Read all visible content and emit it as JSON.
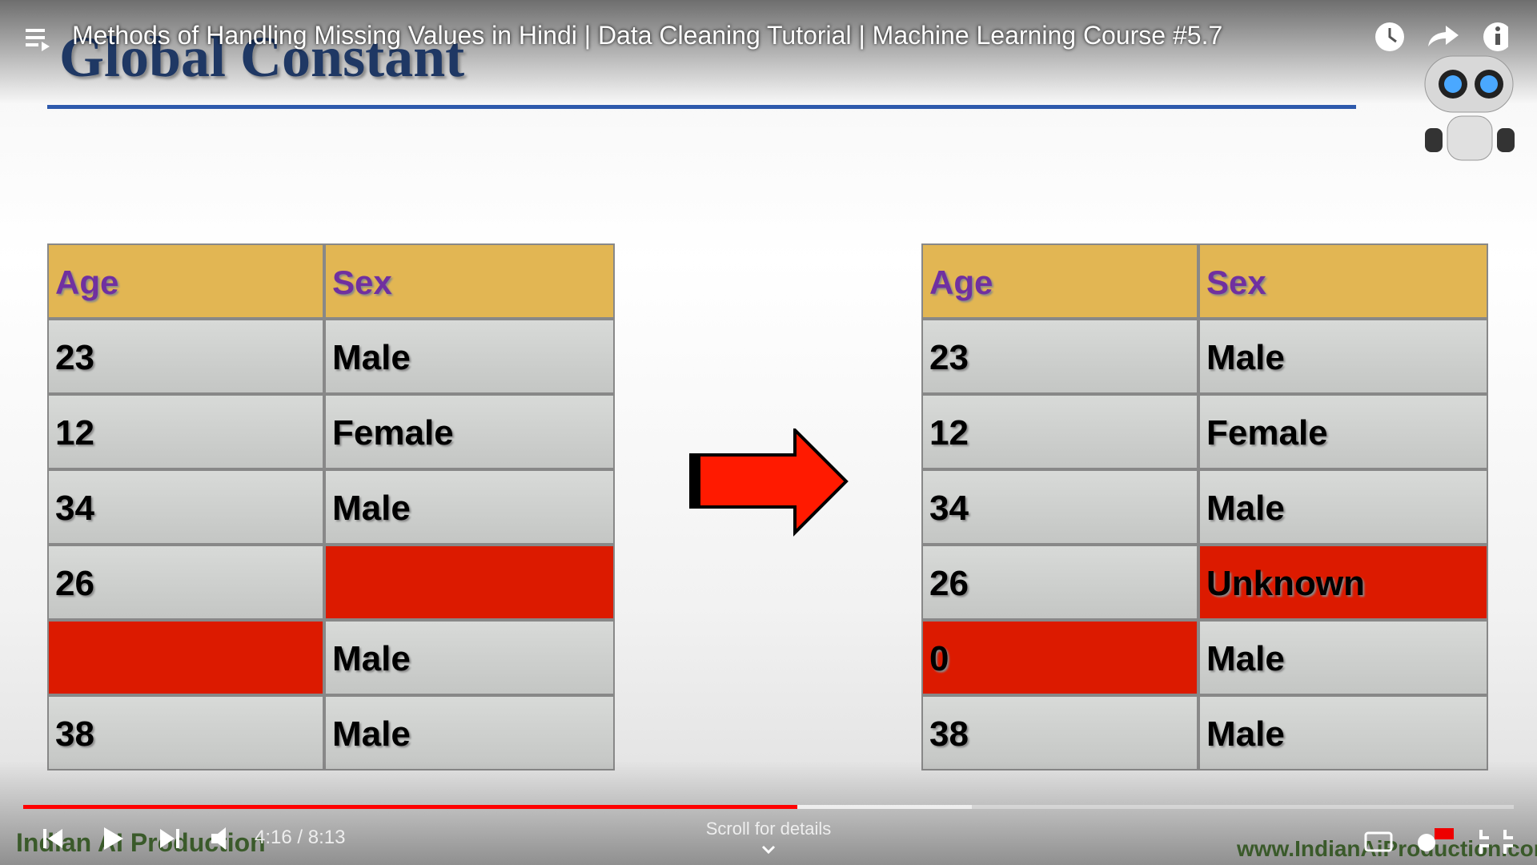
{
  "player": {
    "video_title": "Methods of Handling Missing Values in Hindi | Data Cleaning Tutorial | Machine Learning Course #5.7",
    "time": "4:16 / 8:13",
    "scroll_hint": "Scroll for details"
  },
  "slide": {
    "title": "Global Constant",
    "tables": [
      {
        "header": [
          "Age",
          "Sex"
        ],
        "rows": [
          [
            "23",
            "Male"
          ],
          [
            "12",
            "Female"
          ],
          [
            "34",
            "Male"
          ],
          [
            "26",
            null
          ],
          [
            null,
            "Male"
          ],
          [
            "38",
            "Male"
          ]
        ]
      },
      {
        "header": [
          "Age",
          "Sex"
        ],
        "rows": [
          [
            "23",
            "Male"
          ],
          [
            "12",
            "Female"
          ],
          [
            "34",
            "Male"
          ],
          [
            "26",
            "Unknown"
          ],
          [
            "0",
            "Male"
          ],
          [
            "38",
            "Male"
          ]
        ]
      }
    ],
    "watermark": "Indian AI Production",
    "website": "www.IndianAiProduction.com"
  }
}
